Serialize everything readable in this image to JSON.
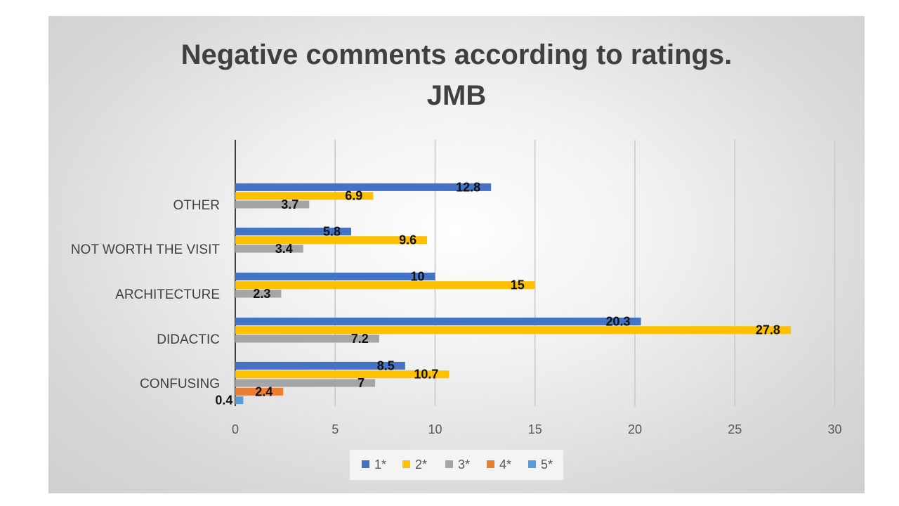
{
  "chart_data": {
    "type": "bar",
    "orientation": "horizontal",
    "title": "Negative comments according to ratings.",
    "subtitle": "JMB",
    "categories": [
      "CONFUSING",
      "DIDACTIC",
      "ARCHITECTURE",
      "NOT WORTH THE VISIT",
      "OTHER"
    ],
    "series": [
      {
        "name": "1*",
        "color": "#4472C4",
        "values": [
          8.5,
          20.3,
          10,
          5.8,
          12.8
        ]
      },
      {
        "name": "2*",
        "color": "#FFC000",
        "values": [
          10.7,
          27.8,
          15,
          9.6,
          6.9
        ]
      },
      {
        "name": "3*",
        "color": "#A5A5A5",
        "values": [
          7,
          7.2,
          2.3,
          3.4,
          3.7
        ]
      },
      {
        "name": "4*",
        "color": "#ED7D31",
        "values": [
          2.4,
          null,
          null,
          null,
          null
        ]
      },
      {
        "name": "5*",
        "color": "#5B9BD5",
        "values": [
          0.4,
          null,
          null,
          null,
          null
        ]
      }
    ],
    "xlim": [
      0,
      30
    ],
    "xticks": [
      0,
      5,
      10,
      15,
      20,
      25,
      30
    ],
    "grid": true,
    "legend_position": "bottom"
  }
}
